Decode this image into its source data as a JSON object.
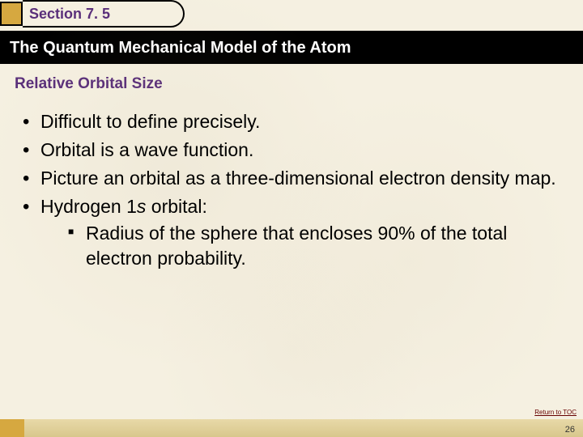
{
  "section": {
    "label": "Section 7. 5"
  },
  "title": "The Quantum Mechanical Model of the Atom",
  "subtitle": "Relative Orbital Size",
  "bullets": [
    {
      "text": "Difficult to define precisely."
    },
    {
      "text": "Orbital is a wave function."
    },
    {
      "text": "Picture an orbital as a three-dimensional electron density map."
    }
  ],
  "bullet4_prefix": "Hydrogen 1",
  "bullet4_italic": "s",
  "bullet4_suffix": " orbital:",
  "subbullet": "Radius of the sphere that encloses 90% of the total electron probability.",
  "toc_link": "Return to TOC",
  "page_number": "26",
  "colors": {
    "background": "#f5f0e1",
    "accent_purple": "#5a2f7a",
    "gold": "#d6a840",
    "titlebar": "#000000",
    "strip_top": "#e8d9a8",
    "strip_bottom": "#d8c78c",
    "toc_link": "#660000"
  }
}
